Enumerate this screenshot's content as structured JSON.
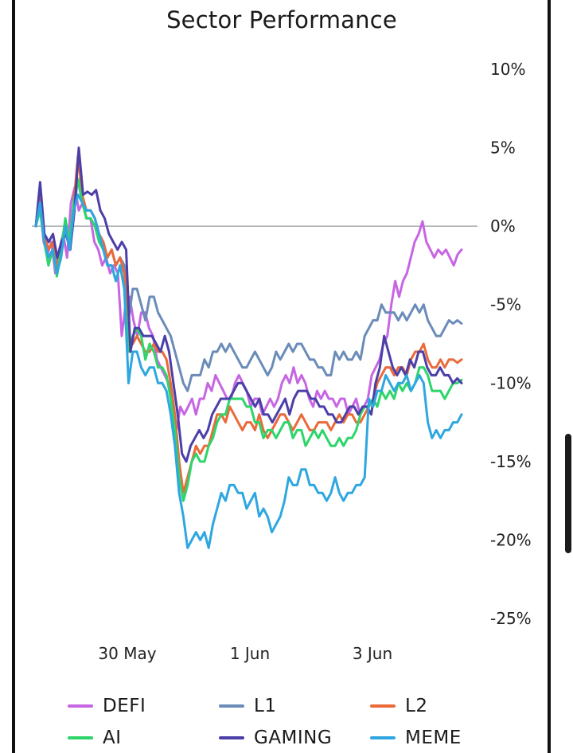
{
  "title": "Sector Performance",
  "chart_data": {
    "type": "line",
    "title": "Sector Performance",
    "y_axis_position": "right",
    "ylim": [
      -25,
      10
    ],
    "yticks": [
      10,
      5,
      0,
      -5,
      -10,
      -15,
      -20,
      -25
    ],
    "ytick_labels": [
      "10%",
      "5%",
      "0%",
      "-5%",
      "-10%",
      "-15%",
      "-20%",
      "-25%"
    ],
    "xlim": [
      0,
      125
    ],
    "xticks": [
      25,
      60,
      95
    ],
    "xtick_labels": [
      "30 May",
      "1 Jun",
      "3 Jun"
    ],
    "reference_line": 0,
    "legend_position": "bottom",
    "series": [
      {
        "name": "DEFI",
        "color": "#c766e3",
        "values": [
          0,
          1.5,
          -1,
          -1.8,
          -1,
          -3,
          -1.5,
          -0.5,
          -2,
          1.5,
          2.5,
          1,
          1.5,
          0.5,
          0.5,
          -1,
          -1.5,
          -2.5,
          -2,
          -3,
          -2.5,
          -3,
          -7,
          -5,
          -4.5,
          -6,
          -7,
          -5.5,
          -5.5,
          -6.5,
          -7,
          -8.5,
          -9,
          -9.5,
          -10,
          -11,
          -13,
          -11.5,
          -12,
          -11.5,
          -11,
          -12,
          -11,
          -11,
          -10,
          -10.5,
          -9.5,
          -10,
          -10.5,
          -11,
          -11,
          -10,
          -9.5,
          -10,
          -10.5,
          -11.5,
          -11,
          -11,
          -12,
          -11.5,
          -11,
          -11.5,
          -11,
          -10,
          -9.5,
          -10,
          -9,
          -10,
          -9.5,
          -10,
          -11,
          -11.5,
          -10.5,
          -11,
          -10.5,
          -11,
          -11,
          -11.5,
          -11,
          -11,
          -12,
          -11.5,
          -11,
          -12,
          -11.5,
          -11,
          -9.5,
          -9,
          -8.5,
          -7.5,
          -7,
          -5,
          -3.5,
          -4.5,
          -3.5,
          -3,
          -2,
          -1,
          -0.5,
          0.3,
          -1,
          -1.5,
          -2,
          -1.5,
          -1.8,
          -1.5,
          -2,
          -2.5,
          -1.8,
          -1.5
        ]
      },
      {
        "name": "L1",
        "color": "#6b8cb8",
        "values": [
          0,
          2,
          -0.5,
          -1.5,
          -1,
          -2.5,
          -1,
          0,
          -1.5,
          1,
          3,
          1.5,
          1,
          1,
          0.5,
          -0.5,
          -1,
          -2,
          -1.5,
          -2.5,
          -2,
          -2.5,
          -6,
          -4,
          -4,
          -5,
          -6,
          -4.5,
          -4.5,
          -5.5,
          -6,
          -6.5,
          -7,
          -8,
          -9,
          -10,
          -10.5,
          -9.5,
          -9.5,
          -9.5,
          -8.5,
          -9,
          -8,
          -8,
          -7.5,
          -8,
          -7.5,
          -8,
          -8.5,
          -9,
          -9,
          -8.5,
          -8,
          -8.5,
          -9,
          -9.5,
          -9,
          -8,
          -8.5,
          -8,
          -7.5,
          -8,
          -7.5,
          -7.5,
          -8,
          -8.5,
          -8.5,
          -9,
          -9,
          -9.5,
          -9.5,
          -8,
          -8.5,
          -8,
          -8.5,
          -8.5,
          -8,
          -8.5,
          -7,
          -6.5,
          -6,
          -6,
          -5,
          -5.5,
          -5.5,
          -5.5,
          -6,
          -5.5,
          -6,
          -5.5,
          -5,
          -5.5,
          -5,
          -6,
          -6.5,
          -7,
          -7,
          -6.5,
          -6,
          -6.2,
          -6,
          -6.2
        ]
      },
      {
        "name": "L2",
        "color": "#ea6a3a",
        "values": [
          0,
          1.8,
          -0.5,
          -1.5,
          -1,
          -2.8,
          -1.5,
          0,
          -1.5,
          1.5,
          4.5,
          2,
          1,
          1,
          0.5,
          -0.5,
          -1,
          -2,
          -1.5,
          -2.5,
          -2,
          -3,
          -7,
          -7.5,
          -7,
          -7.5,
          -8,
          -8,
          -7.5,
          -8,
          -8,
          -8.5,
          -10,
          -12,
          -15,
          -17,
          -16,
          -15,
          -14,
          -14.5,
          -14,
          -14,
          -13,
          -12,
          -12,
          -12.5,
          -11.5,
          -12,
          -12.5,
          -13,
          -12.5,
          -12.5,
          -13,
          -12,
          -13,
          -13.5,
          -13,
          -12.5,
          -12,
          -12,
          -12.5,
          -13,
          -12.5,
          -12,
          -12.5,
          -13,
          -13,
          -12.5,
          -12.5,
          -12.5,
          -13,
          -12.5,
          -12,
          -12.5,
          -12,
          -12,
          -12.5,
          -12.5,
          -12,
          -11.5,
          -11,
          -10,
          -9.5,
          -9,
          -9,
          -9.5,
          -9,
          -9,
          -9.5,
          -8.5,
          -8,
          -8,
          -7.5,
          -8.5,
          -9,
          -9,
          -8.5,
          -9,
          -8.5,
          -8.5,
          -8.7,
          -8.5
        ]
      },
      {
        "name": "AI",
        "color": "#2dd56a",
        "values": [
          0,
          1,
          -1,
          -2.5,
          -1.5,
          -3.2,
          -1.5,
          0.5,
          -1,
          1.5,
          3,
          1.5,
          0.5,
          0.5,
          0,
          -1,
          -1.5,
          -2.5,
          -2.5,
          -3.5,
          -2.5,
          -4,
          -8,
          -7,
          -6.5,
          -7,
          -8.5,
          -7.5,
          -8,
          -9,
          -9,
          -9.5,
          -11,
          -13,
          -16,
          -17.5,
          -16.5,
          -15,
          -14.5,
          -15,
          -15,
          -14,
          -13.5,
          -12.5,
          -12,
          -12,
          -11,
          -11,
          -11,
          -11,
          -11.5,
          -11.5,
          -12.5,
          -12.5,
          -13.5,
          -13,
          -13,
          -13.5,
          -13,
          -12.5,
          -12.5,
          -13.5,
          -13,
          -13,
          -14,
          -13.5,
          -13,
          -13.5,
          -13,
          -13.5,
          -14,
          -14,
          -13.5,
          -14,
          -13.5,
          -13.5,
          -13,
          -12,
          -11.5,
          -11.5,
          -11,
          -11.5,
          -10.5,
          -11,
          -10.5,
          -11,
          -10,
          -10.5,
          -10,
          -10.5,
          -10,
          -9,
          -9,
          -9.5,
          -10.5,
          -10.5,
          -10.5,
          -11,
          -10.5,
          -10,
          -10,
          -9.8
        ]
      },
      {
        "name": "GAMING",
        "color": "#4b3fa8",
        "values": [
          0,
          2.8,
          -0.5,
          -1,
          -0.5,
          -2,
          -1,
          -0.5,
          -1.5,
          1,
          5,
          2,
          2.2,
          2,
          2.3,
          1,
          0.5,
          -0.5,
          -1,
          -1.5,
          -1,
          -1.5,
          -8,
          -6.5,
          -6.5,
          -7,
          -7,
          -7,
          -7.5,
          -8,
          -7,
          -8,
          -10,
          -12,
          -14.5,
          -15,
          -14,
          -13.5,
          -13,
          -13.5,
          -13,
          -12,
          -11.5,
          -11,
          -11,
          -11,
          -10.5,
          -10,
          -10,
          -10.5,
          -11,
          -11.5,
          -11,
          -12,
          -12,
          -12.5,
          -12,
          -11.5,
          -11,
          -12,
          -11,
          -10.5,
          -10.5,
          -10.5,
          -11,
          -11,
          -11.5,
          -11.5,
          -12,
          -12,
          -12.5,
          -12.5,
          -12,
          -11.5,
          -11.5,
          -12,
          -11.5,
          -11.5,
          -12,
          -10,
          -9,
          -7,
          -8,
          -9,
          -9.5,
          -9,
          -9.5,
          -8.5,
          -9,
          -8,
          -8,
          -9,
          -9.5,
          -9.5,
          -9,
          -9.5,
          -9.5,
          -10,
          -9.7,
          -10
        ]
      },
      {
        "name": "MEME",
        "color": "#2ea7e0",
        "values": [
          0,
          1.5,
          -1,
          -2,
          -1.5,
          -3,
          -2,
          0,
          -1.5,
          1,
          2,
          1.5,
          1,
          1,
          0.5,
          -0.5,
          -1.5,
          -2.5,
          -2.5,
          -3.5,
          -2.5,
          -4,
          -10,
          -8,
          -8,
          -9,
          -9.5,
          -9,
          -9,
          -10,
          -10,
          -10.5,
          -12,
          -14,
          -17,
          -18.5,
          -20.5,
          -20,
          -19.5,
          -20,
          -19.5,
          -20.5,
          -19,
          -18,
          -17,
          -17.5,
          -16.5,
          -16.5,
          -17,
          -17,
          -18,
          -17.5,
          -17,
          -18.5,
          -18,
          -18.5,
          -19.5,
          -19,
          -18.5,
          -17.5,
          -16,
          -16.5,
          -16.5,
          -15.5,
          -15.5,
          -16.5,
          -16.5,
          -17,
          -17,
          -17.5,
          -17,
          -16,
          -17,
          -17.5,
          -17,
          -17,
          -16.5,
          -16.5,
          -16,
          -11,
          -11.5,
          -10.5,
          -10.5,
          -9.5,
          -10,
          -10.5,
          -10,
          -10,
          -9.5,
          -10.5,
          -10,
          -9.5,
          -10,
          -12.5,
          -13.5,
          -13,
          -13.5,
          -13,
          -13,
          -12.5,
          -12.5,
          -12
        ]
      }
    ]
  }
}
